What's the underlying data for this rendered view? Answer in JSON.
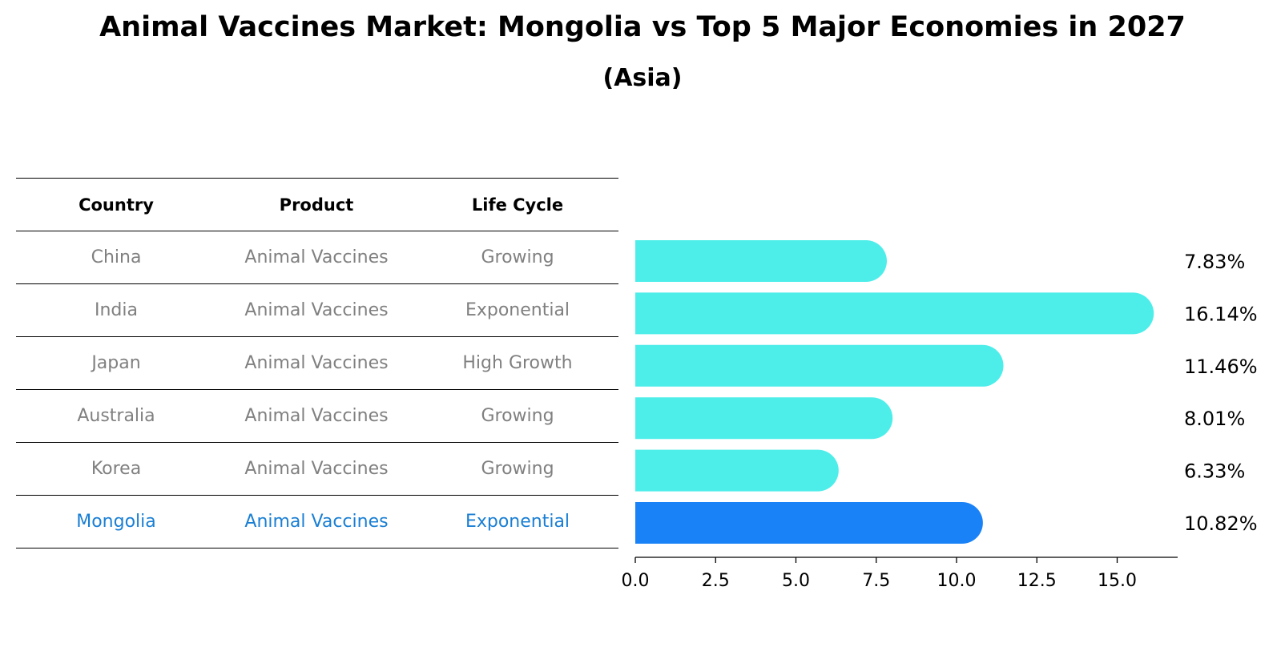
{
  "title": "Animal Vaccines Market: Mongolia vs Top 5 Major Economies in 2027",
  "subtitle": "(Asia)",
  "table": {
    "headers": [
      "Country",
      "Product",
      "Life Cycle"
    ],
    "rows": [
      [
        "China",
        "Animal Vaccines",
        "Growing"
      ],
      [
        "India",
        "Animal Vaccines",
        "Exponential"
      ],
      [
        "Japan",
        "Animal Vaccines",
        "High Growth"
      ],
      [
        "Australia",
        "Animal Vaccines",
        "Growing"
      ],
      [
        "Korea",
        "Animal Vaccines",
        "Growing"
      ],
      [
        "Mongolia",
        "Animal Vaccines",
        "Exponential"
      ]
    ]
  },
  "colors": {
    "bar": "#4deeea",
    "highlight": "#1a82f7",
    "highlight_text": "#1a7fd4"
  },
  "chart_data": {
    "type": "bar",
    "orientation": "horizontal",
    "categories": [
      "China",
      "India",
      "Japan",
      "Australia",
      "Korea",
      "Mongolia"
    ],
    "values": [
      7.83,
      16.14,
      11.46,
      8.01,
      6.33,
      10.82
    ],
    "value_labels": [
      "7.83%",
      "16.14%",
      "11.46%",
      "8.01%",
      "6.33%",
      "10.82%"
    ],
    "highlight_category": "Mongolia",
    "xlim": [
      0,
      17
    ],
    "xticks": [
      0,
      2.5,
      5,
      7.5,
      10,
      12.5,
      15
    ],
    "xtick_labels": [
      "0.0",
      "2.5",
      "5.0",
      "7.5",
      "10.0",
      "12.5",
      "15.0"
    ],
    "title": "Animal Vaccines Market: Mongolia vs Top 5 Major Economies in 2027",
    "subtitle": "(Asia)",
    "xlabel": "",
    "ylabel": ""
  }
}
